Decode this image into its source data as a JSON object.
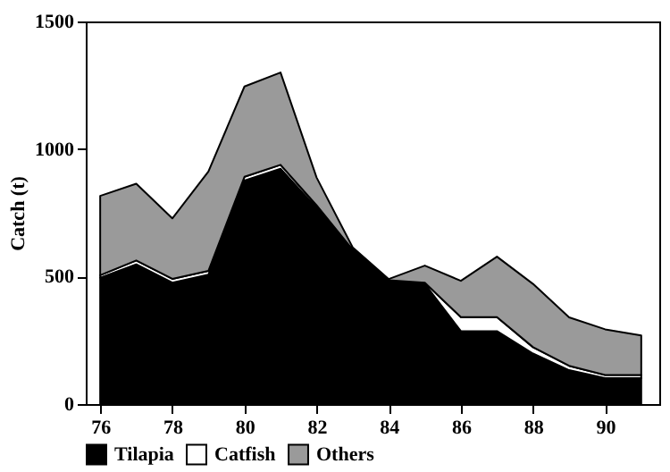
{
  "chart_data": {
    "type": "area",
    "stacked": true,
    "ylabel": "Catch (t)",
    "x": [
      76,
      77,
      78,
      79,
      80,
      81,
      82,
      83,
      84,
      85,
      86,
      87,
      88,
      89,
      90,
      91
    ],
    "series": [
      {
        "name": "Tilapia",
        "color": "#000000",
        "values": [
          495,
          548,
          476,
          507,
          876,
          923,
          769,
          600,
          480,
          471,
          286,
          286,
          198,
          133,
          102,
          102
        ]
      },
      {
        "name": "Catfish",
        "color": "#ffffff",
        "values": [
          10,
          15,
          15,
          15,
          15,
          15,
          10,
          5,
          5,
          5,
          55,
          55,
          25,
          17,
          12,
          12
        ]
      },
      {
        "name": "Others",
        "color": "#9a9a9a",
        "values": [
          311,
          301,
          237,
          390,
          354,
          362,
          109,
          9,
          5,
          67,
          142,
          237,
          248,
          190,
          179,
          155
        ]
      }
    ],
    "xlim": [
      75.6,
      91.5
    ],
    "xticks": [
      76,
      78,
      80,
      82,
      84,
      86,
      88,
      90
    ],
    "ylim": [
      0,
      1500
    ],
    "yticks": [
      0,
      500,
      1000,
      1500
    ],
    "grid": false,
    "legend": "bottom"
  }
}
